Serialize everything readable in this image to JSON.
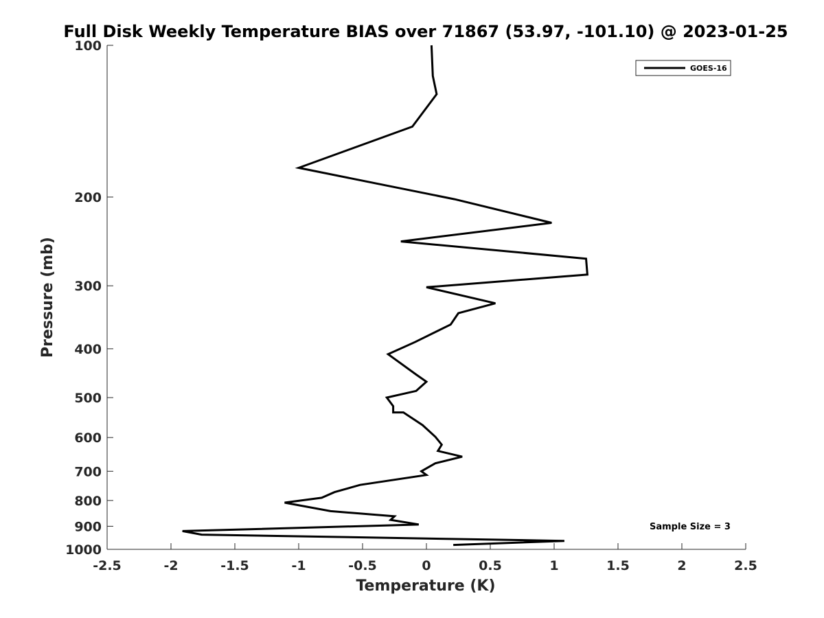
{
  "chart_data": {
    "type": "line",
    "title": "Full Disk Weekly Temperature BIAS over 71867 (53.97, -101.10) @ 2023-01-25",
    "xlabel": "Temperature (K)",
    "ylabel": "Pressure (mb)",
    "xlim": [
      -2.5,
      2.5
    ],
    "ylim": [
      100,
      1000
    ],
    "yscale": "log",
    "y_reversed": true,
    "grid": false,
    "legend_position": "top-right",
    "x_ticks": [
      -2.5,
      -2,
      -1.5,
      -1,
      -0.5,
      0,
      0.5,
      1,
      1.5,
      2,
      2.5
    ],
    "x_tick_labels": [
      "-2.5",
      "-2",
      "-1.5",
      "-1",
      "-0.5",
      "0",
      "0.5",
      "1",
      "1.5",
      "2",
      "2.5"
    ],
    "y_ticks": [
      100,
      200,
      300,
      400,
      500,
      600,
      700,
      800,
      900,
      1000
    ],
    "y_tick_labels": [
      "100",
      "200",
      "300",
      "400",
      "500",
      "600",
      "700",
      "800",
      "900",
      "1000"
    ],
    "series": [
      {
        "name": "GOES-16",
        "color": "#000000",
        "x": [
          0.04,
          0.05,
          0.08,
          -0.11,
          -1.0,
          0.22,
          0.98,
          -0.2,
          1.25,
          1.26,
          0.0,
          0.54,
          0.25,
          0.19,
          -0.09,
          -0.3,
          -0.08,
          0.0,
          -0.08,
          -0.31,
          -0.26,
          -0.26,
          -0.18,
          -0.03,
          0.07,
          0.12,
          0.09,
          0.28,
          0.07,
          -0.04,
          0.0,
          -0.52,
          -0.72,
          -0.82,
          -1.11,
          -0.75,
          -0.25,
          -0.28,
          -0.06,
          -1.91,
          -1.76,
          1.08,
          0.21
        ],
        "y": [
          100,
          115,
          125,
          145,
          175,
          202,
          225,
          245,
          265,
          285,
          302,
          325,
          340,
          358,
          388,
          410,
          450,
          465,
          485,
          500,
          520,
          535,
          535,
          567,
          598,
          620,
          638,
          655,
          675,
          700,
          712,
          745,
          770,
          790,
          808,
          840,
          860,
          874,
          893,
          920,
          935,
          962,
          980
        ]
      }
    ],
    "annotation": "Sample Size = 3"
  }
}
